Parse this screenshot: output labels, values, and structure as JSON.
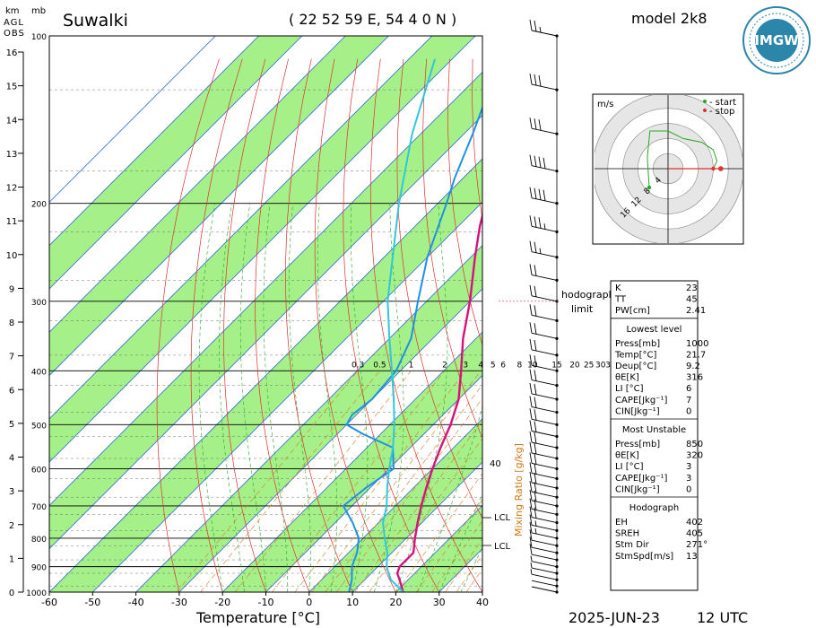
{
  "header": {
    "station": "Suwalki",
    "coords": "( 22 52 59 E, 54 4 0 N )",
    "model": "model 2k8",
    "logo_text": "IMGW",
    "date": "2025-JUN-23",
    "time": "12 UTC"
  },
  "axis_labels": {
    "km": "km",
    "agl": "AGL",
    "obs": "OBS",
    "mb": "mb",
    "x_title": "Temperature [°C]",
    "mixing_ratio": "Mixing Ratio [g/kg]"
  },
  "chart_data": {
    "type": "line",
    "subtype": "skew-T log-P diagram",
    "x_ticks": [
      -60,
      -50,
      -40,
      -30,
      -20,
      -10,
      0,
      10,
      20,
      30,
      40
    ],
    "p_ticks": [
      100,
      200,
      300,
      400,
      500,
      600,
      700,
      800,
      900,
      1000
    ],
    "height_ticks_km": [
      0,
      1,
      2,
      3,
      4,
      5,
      6,
      7,
      8,
      9,
      10,
      11,
      12,
      13,
      14,
      15,
      16
    ],
    "mixing_ratio_labels": [
      "0.3",
      "0.5",
      "1",
      "2",
      "3",
      "4",
      "5",
      "6",
      "8",
      "10",
      "15",
      "20",
      "25",
      "30",
      "35"
    ],
    "annotations": [
      "40",
      "LCL",
      "LCL"
    ],
    "series": [
      {
        "name": "temperature",
        "color": "#d4147a",
        "points": [
          [
            1000,
            21.7
          ],
          [
            950,
            18
          ],
          [
            925,
            16
          ],
          [
            900,
            15
          ],
          [
            850,
            15
          ],
          [
            800,
            12
          ],
          [
            750,
            9
          ],
          [
            700,
            6
          ],
          [
            650,
            3
          ],
          [
            600,
            0
          ],
          [
            550,
            -3
          ],
          [
            500,
            -6
          ],
          [
            450,
            -10
          ],
          [
            400,
            -16
          ],
          [
            350,
            -23
          ],
          [
            300,
            -30
          ],
          [
            250,
            -39
          ],
          [
            220,
            -45
          ],
          [
            200,
            -49
          ],
          [
            180,
            -51
          ],
          [
            160,
            -50
          ],
          [
            140,
            -49
          ],
          [
            120,
            -51
          ],
          [
            110,
            -53
          ]
        ]
      },
      {
        "name": "dewpoint",
        "color": "#1e90e6",
        "points": [
          [
            1000,
            9.2
          ],
          [
            950,
            7
          ],
          [
            900,
            4
          ],
          [
            850,
            2
          ],
          [
            800,
            -1
          ],
          [
            750,
            -6
          ],
          [
            700,
            -12
          ],
          [
            650,
            -11
          ],
          [
            600,
            -9
          ],
          [
            550,
            -14
          ],
          [
            520,
            -24
          ],
          [
            500,
            -30
          ],
          [
            480,
            -31
          ],
          [
            450,
            -30
          ],
          [
            400,
            -31
          ],
          [
            350,
            -35
          ],
          [
            300,
            -42
          ],
          [
            250,
            -50
          ],
          [
            200,
            -58
          ],
          [
            180,
            -62
          ],
          [
            150,
            -68
          ],
          [
            130,
            -73
          ],
          [
            110,
            -78
          ]
        ]
      },
      {
        "name": "parcel",
        "color": "#30c8d8",
        "points": [
          [
            1000,
            21.7
          ],
          [
            950,
            16
          ],
          [
            900,
            12
          ],
          [
            850,
            9
          ],
          [
            800,
            5
          ],
          [
            750,
            1
          ],
          [
            700,
            -2
          ],
          [
            650,
            -6
          ],
          [
            600,
            -10
          ],
          [
            550,
            -14
          ],
          [
            500,
            -19
          ],
          [
            450,
            -25
          ],
          [
            400,
            -32
          ],
          [
            350,
            -40
          ],
          [
            300,
            -49
          ],
          [
            250,
            -58
          ],
          [
            200,
            -69
          ],
          [
            150,
            -82
          ],
          [
            110,
            -94
          ]
        ]
      }
    ],
    "wind_barbs_kt": [
      [
        1000,
        2
      ],
      [
        975,
        4
      ],
      [
        950,
        5
      ],
      [
        925,
        6
      ],
      [
        900,
        8
      ],
      [
        875,
        10
      ],
      [
        850,
        12
      ],
      [
        825,
        14
      ],
      [
        800,
        16
      ],
      [
        775,
        18
      ],
      [
        750,
        20
      ],
      [
        725,
        20
      ],
      [
        700,
        20
      ],
      [
        675,
        20
      ],
      [
        650,
        20
      ],
      [
        625,
        20
      ],
      [
        600,
        20
      ],
      [
        575,
        20
      ],
      [
        550,
        20
      ],
      [
        525,
        20
      ],
      [
        500,
        20
      ],
      [
        475,
        20
      ],
      [
        450,
        20
      ],
      [
        425,
        20
      ],
      [
        400,
        20
      ],
      [
        375,
        20
      ],
      [
        350,
        20
      ],
      [
        325,
        20
      ],
      [
        300,
        20
      ],
      [
        275,
        20
      ],
      [
        250,
        25
      ],
      [
        225,
        35
      ],
      [
        200,
        40
      ],
      [
        175,
        40
      ],
      [
        150,
        30
      ],
      [
        125,
        30
      ],
      [
        100,
        25
      ]
    ],
    "xlim": [
      -60,
      40
    ],
    "ylim": [
      1000,
      100
    ]
  },
  "hodograph": {
    "unit": "m/s",
    "legend_start": "- start",
    "legend_stop": "- stop",
    "ring_labels": [
      "4",
      "8",
      "12",
      "16"
    ],
    "points": [
      [
        -5,
        -5
      ],
      [
        -5.5,
        3
      ],
      [
        -4.8,
        10
      ],
      [
        0,
        10
      ],
      [
        4,
        8
      ],
      [
        9,
        7
      ],
      [
        12,
        5
      ],
      [
        13,
        2
      ],
      [
        12,
        0
      ]
    ],
    "label_1": "hodograph",
    "label_2": "limit"
  },
  "indices": {
    "top": [
      {
        "k": "K",
        "v": "23"
      },
      {
        "k": "TT",
        "v": "45"
      },
      {
        "k": "PW[cm]",
        "v": "2.41"
      }
    ],
    "lowest_title": "Lowest level",
    "lowest": [
      {
        "k": "Press[mb]",
        "v": "1000"
      },
      {
        "k": "Temp[°C]",
        "v": "21.7"
      },
      {
        "k": "Deup[°C]",
        "v": "9.2"
      },
      {
        "k": "θE[K]",
        "v": "316"
      },
      {
        "k": "LI [°C]",
        "v": "6"
      },
      {
        "k": "CAPE[Jkg⁻¹]",
        "v": "7"
      },
      {
        "k": "CIN[Jkg⁻¹]",
        "v": "0"
      }
    ],
    "unstable_title": "Most Unstable",
    "unstable": [
      {
        "k": "Press[mb]",
        "v": "850"
      },
      {
        "k": "θE[K]",
        "v": "320"
      },
      {
        "k": "LI [°C]",
        "v": "3"
      },
      {
        "k": "CAPE[Jkg⁻¹]",
        "v": "3"
      },
      {
        "k": "CIN[Jkg⁻¹]",
        "v": "0"
      }
    ],
    "hodo_title": "Hodograph",
    "hodo": [
      {
        "k": "EH",
        "v": "402"
      },
      {
        "k": "SREH",
        "v": "405"
      },
      {
        "k": "Stm Dir",
        "v": "271°"
      },
      {
        "k": "StmSpd[m/s]",
        "v": "13"
      }
    ]
  },
  "colors": {
    "band_green": "#a6f08a",
    "isotherm_blue": "#2a6ad6",
    "dry_adiabat": "#e03030",
    "moist_adiabat": "#22aa22",
    "mixing_ratio": "#e07a1a",
    "temperature": "#d4147a",
    "dewpoint": "#1e90e6",
    "parcel": "#30c8d8"
  }
}
